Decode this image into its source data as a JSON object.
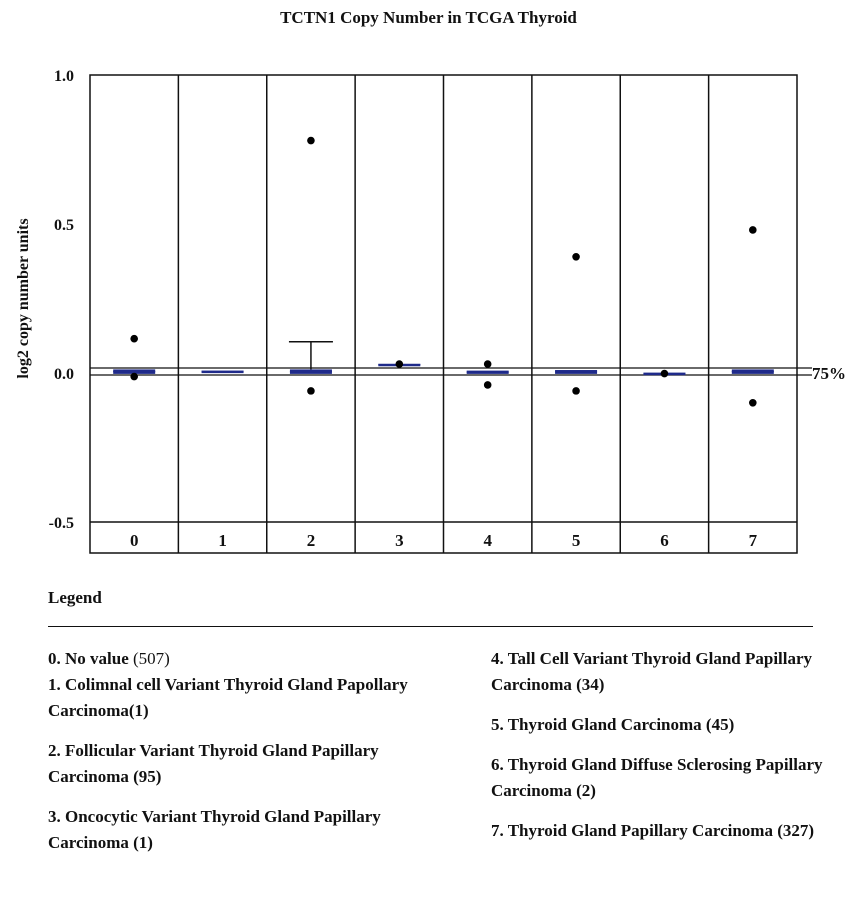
{
  "title": "TCTN1 Copy Number in TCGA  Thyroid",
  "legend": {
    "heading": "Legend",
    "items": [
      {
        "label": "0. No value",
        "count": "(507)"
      },
      {
        "label": "1. Colimnal cell Variant Thyroid Gland Papollary Carcinoma(1)"
      },
      {
        "label": "2. Follicular Variant Thyroid Gland Papillary Carcinoma (95)"
      },
      {
        "label": "3. Oncocytic Variant Thyroid Gland Papillary Carcinoma (1)"
      },
      {
        "label": "4. Tall Cell Variant Thyroid Gland Papillary Carcinoma (34)"
      },
      {
        "label": "5. Thyroid Gland Carcinoma (45)"
      },
      {
        "label": "6. Thyroid Gland Diffuse Sclerosing Papillary Carcinoma (2)"
      },
      {
        "label": "7. Thyroid Gland Papillary Carcinoma (327)"
      }
    ]
  },
  "chart_data": {
    "type": "box",
    "title": "TCTN1 Copy Number in TCGA  Thyroid",
    "ylabel": "log2 copy number units",
    "xlabel": "",
    "ylim": [
      -0.5,
      1.0
    ],
    "yticks": [
      {
        "value": 1.0,
        "label": "1.0"
      },
      {
        "value": 0.5,
        "label": "0.5"
      },
      {
        "value": 0.0,
        "label": "0.0"
      },
      {
        "value": -0.5,
        "label": "-0.5"
      }
    ],
    "categories": [
      "0",
      "1",
      "2",
      "3",
      "4",
      "5",
      "6",
      "7"
    ],
    "reference_line": {
      "value": 0.0,
      "label": "75%"
    },
    "box_color": "#1f2a8a",
    "groups": [
      {
        "category": "0",
        "q1": -0.003,
        "median": 0.005,
        "q3": 0.012,
        "outliers": [
          0.115,
          -0.012
        ]
      },
      {
        "category": "1",
        "q1": 0.004,
        "median": 0.006,
        "q3": 0.008,
        "outliers": []
      },
      {
        "category": "2",
        "q1": -0.003,
        "median": 0.005,
        "q3": 0.012,
        "whisker_high": 0.105,
        "outliers": [
          0.78,
          -0.06
        ]
      },
      {
        "category": "3",
        "q1": 0.025,
        "median": 0.028,
        "q3": 0.031,
        "outliers": [
          0.03
        ]
      },
      {
        "category": "4",
        "q1": -0.003,
        "median": 0.003,
        "q3": 0.008,
        "outliers": [
          0.03,
          -0.04
        ]
      },
      {
        "category": "5",
        "q1": -0.003,
        "median": 0.004,
        "q3": 0.01,
        "outliers": [
          0.39,
          -0.06
        ]
      },
      {
        "category": "6",
        "q1": -0.003,
        "median": -0.001,
        "q3": 0.001,
        "outliers": [
          -0.002
        ]
      },
      {
        "category": "7",
        "q1": -0.003,
        "median": 0.005,
        "q3": 0.012,
        "outliers": [
          0.48,
          -0.1
        ]
      }
    ]
  }
}
